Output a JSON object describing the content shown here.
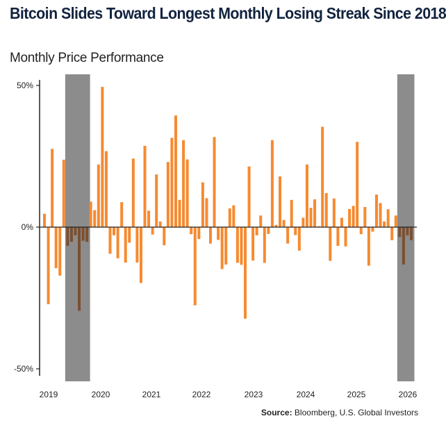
{
  "chart_data": {
    "type": "bar",
    "title": "Bitcoin Slides Toward Longest Monthly Losing Streak Since 2018",
    "subtitle": "Monthly Price Performance",
    "xlabel": "",
    "ylabel": "",
    "ylim": [
      -50,
      50
    ],
    "y_ticks": [
      "50%",
      "0%",
      "-50%"
    ],
    "y_tick_values": [
      50,
      0,
      -50
    ],
    "x_tick_labels": [
      "2019",
      "2020",
      "2021",
      "2022",
      "2023",
      "2024",
      "2025",
      "2026"
    ],
    "grid": false,
    "values": [
      4.7,
      -27.2,
      27.6,
      -14.5,
      -17.1,
      23.8,
      -6.6,
      -5.2,
      -2.9,
      -29.5,
      -4.8,
      -5.2,
      9.0,
      6.0,
      22.1,
      49.5,
      26.8,
      -9.4,
      -2.9,
      -11.0,
      8.8,
      -12.5,
      -5.5,
      24.2,
      -12.5,
      -19.7,
      28.7,
      5.8,
      -2.6,
      18.6,
      2.0,
      -6.4,
      23.0,
      31.5,
      39.4,
      9.6,
      30.7,
      23.9,
      -2.5,
      -27.6,
      -4.2,
      15.8,
      10.2,
      -5.8,
      31.8,
      -4.5,
      -14.8,
      -13.2,
      6.6,
      7.7,
      -12.6,
      -13.3,
      -32.3,
      21.4,
      -11.8,
      -2.9,
      4.1,
      -12.6,
      -2.4,
      30.7,
      0.8,
      17.9,
      2.5,
      -5.8,
      9.6,
      -2.8,
      -8.3,
      3.3,
      22.1,
      6.8,
      9.8,
      0.3,
      35.4,
      12.0,
      -11.9,
      10.1,
      -6.6,
      3.3,
      -6.8,
      6.4,
      7.5,
      30.1,
      -2.5,
      7.1,
      -13.6,
      -1.6,
      11.5,
      8.5,
      2.0,
      6.3,
      -4.6,
      4.1,
      -3.5,
      -13.2,
      -2.9,
      -4.6
    ],
    "highlighted_streaks": [
      [
        7,
        12
      ],
      [
        93,
        96
      ]
    ],
    "colors": {
      "bar": "#f68a30",
      "bar_highlighted": "#7b4f30",
      "shade": "#8c8c8c",
      "axis": "#222222"
    }
  },
  "source": {
    "label": "Source:",
    "text": "Bloomberg, U.S. Global Investors"
  }
}
